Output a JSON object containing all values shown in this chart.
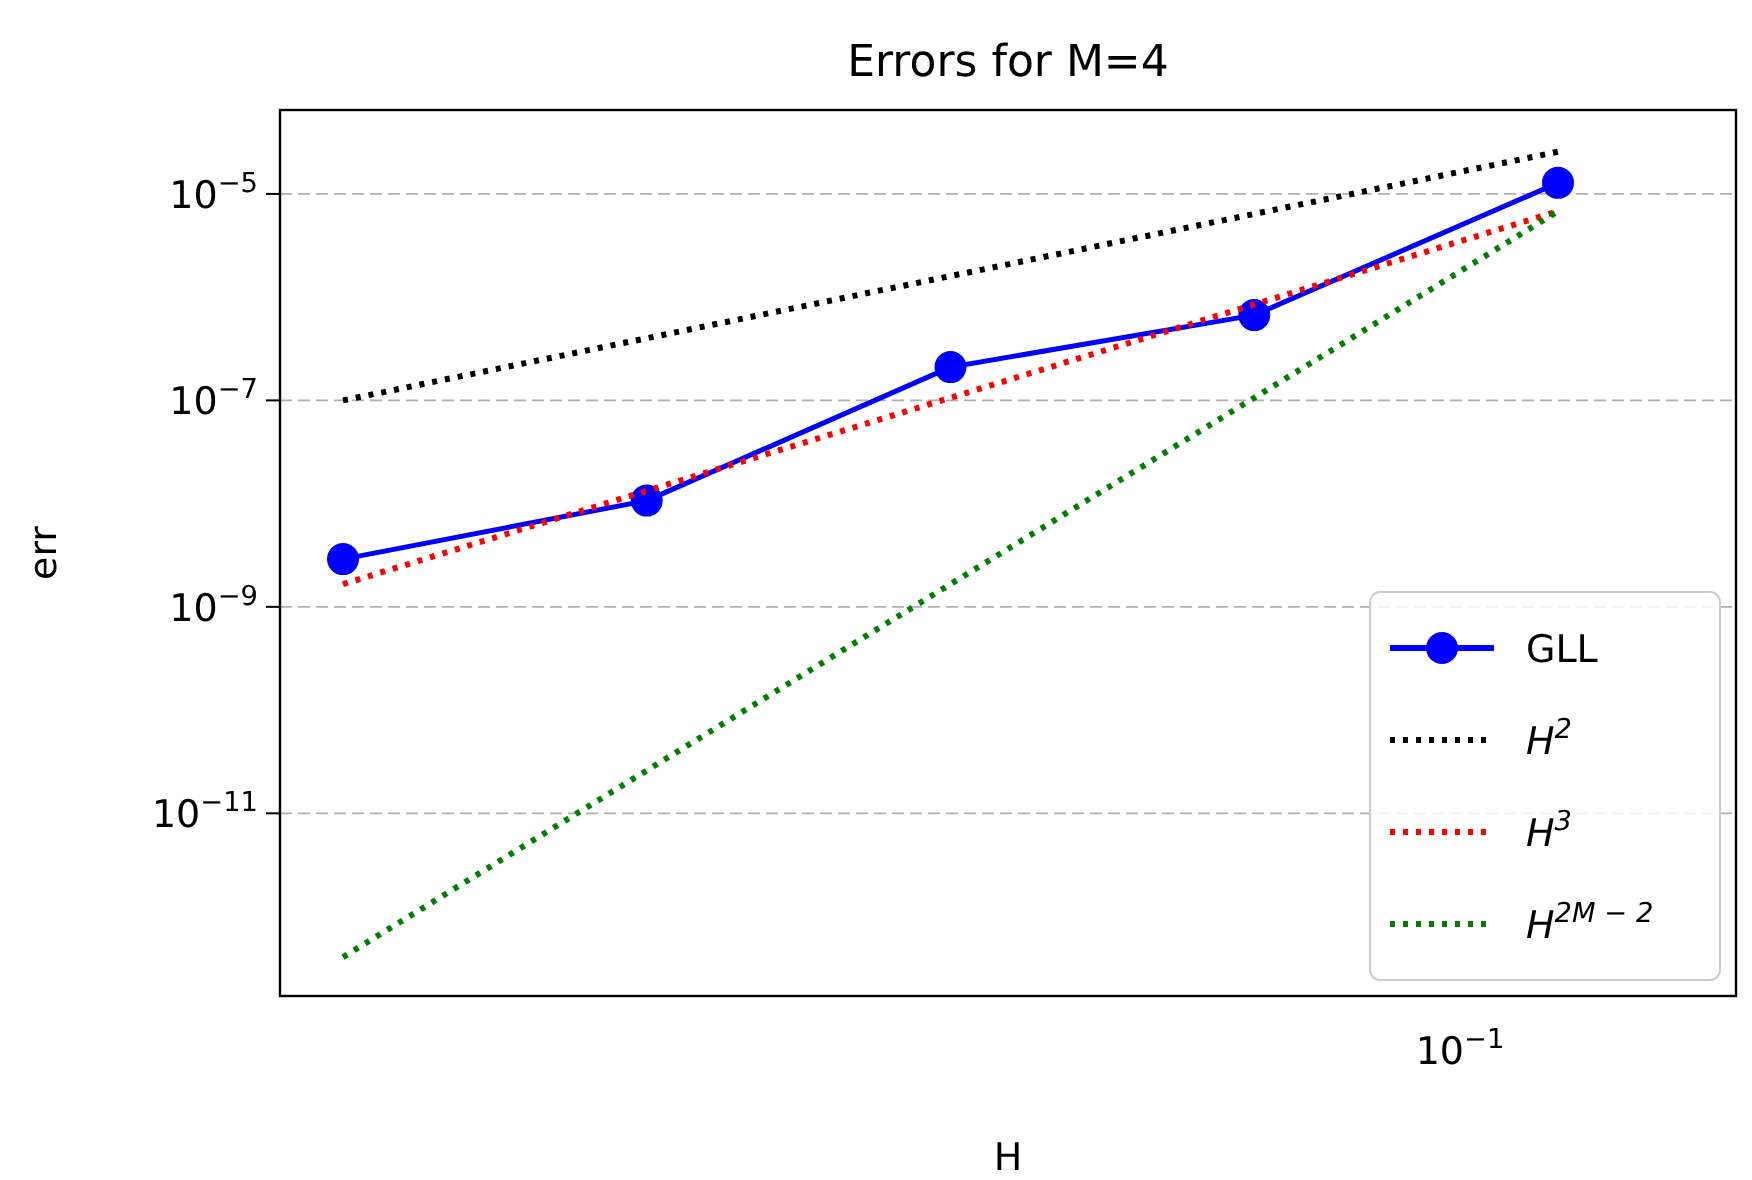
{
  "chart_data": {
    "type": "line",
    "title": "Errors for M=4",
    "xlabel": "H",
    "ylabel": "err",
    "log": "y",
    "grid": "y",
    "legend": "bottom right",
    "categories": [
      null,
      null,
      null,
      null,
      null
    ],
    "annotations": [
      "10$^{−1}$"
    ],
    "ylim": [
      1.7e-13,
      6.5e-05
    ],
    "yticks": [
      {
        "value": 1e-11,
        "label": "10$^{−11}$"
      },
      {
        "value": 1e-09,
        "label": "10$^{−9}$"
      },
      {
        "value": 1e-07,
        "label": "10$^{−7}$"
      },
      {
        "value": 1e-05,
        "label": "10$^{−5}$"
      }
    ],
    "series": [
      {
        "name": "GLL",
        "color": "#0000ff",
        "marker": "circle",
        "line_style": "solid",
        "values": [
          2.9e-09,
          1.07e-08,
          2.1e-07,
          6.7e-07,
          1.28e-05
        ]
      },
      {
        "name": "H$^{2}$",
        "color": "#000000",
        "marker": "none",
        "line_style": "dotted",
        "values": [
          1e-07,
          4e-07,
          1.6e-06,
          6.4e-06,
          2.56e-05
        ]
      },
      {
        "name": "H$^{3}$",
        "color": "#ff0000",
        "marker": "none",
        "line_style": "dotted",
        "values": [
          1.66e-09,
          1.33e-08,
          1.06e-07,
          8.5e-07,
          6.8e-06
        ]
      },
      {
        "name": "H$^{2M − 2}$",
        "color": "#008000",
        "marker": "none",
        "line_style": "dotted",
        "values": [
          4.05e-13,
          2.6e-11,
          1.66e-09,
          1.06e-07,
          6.8e-06
        ]
      }
    ]
  }
}
